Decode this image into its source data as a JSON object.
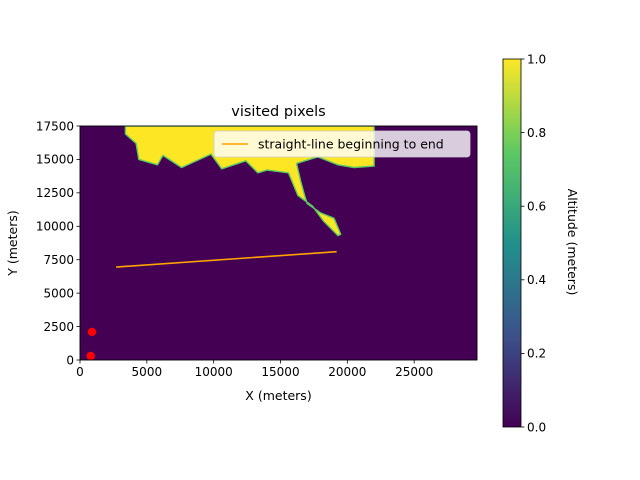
{
  "chart_data": {
    "type": "heatmap",
    "title": "visited pixels",
    "xlabel": "X (meters)",
    "ylabel": "Y (meters)",
    "xlim": [
      0,
      29700
    ],
    "ylim": [
      0,
      17500
    ],
    "x_ticks": [
      0,
      5000,
      10000,
      15000,
      20000,
      25000
    ],
    "y_ticks": [
      0,
      2500,
      5000,
      7500,
      10000,
      12500,
      15000,
      17500
    ],
    "grid": false,
    "background_value": 0.0,
    "visited_value": 1.0,
    "visited_region": [
      [
        3400,
        17500
      ],
      [
        18500,
        17500
      ],
      [
        22000,
        17500
      ],
      [
        22000,
        14500
      ],
      [
        20500,
        14400
      ],
      [
        19300,
        14600
      ],
      [
        17800,
        15200
      ],
      [
        16200,
        14700
      ],
      [
        16500,
        13400
      ],
      [
        16800,
        12300
      ],
      [
        17000,
        11700
      ],
      [
        18000,
        11000
      ],
      [
        19000,
        10600
      ],
      [
        19500,
        9400
      ],
      [
        19300,
        9300
      ],
      [
        18200,
        10400
      ],
      [
        17400,
        11500
      ],
      [
        16300,
        12300
      ],
      [
        15600,
        14000
      ],
      [
        14000,
        14200
      ],
      [
        13300,
        14000
      ],
      [
        12400,
        14900
      ],
      [
        10600,
        14300
      ],
      [
        9800,
        15400
      ],
      [
        7600,
        14400
      ],
      [
        6200,
        15300
      ],
      [
        5800,
        14600
      ],
      [
        4400,
        15000
      ],
      [
        4200,
        16200
      ],
      [
        3400,
        16900
      ]
    ],
    "series": [
      {
        "name": "straight-line beginning to end",
        "type": "line",
        "color": "#ffa500",
        "x": [
          2700,
          19200
        ],
        "y": [
          6950,
          8100
        ]
      },
      {
        "type": "scatter",
        "color": "#ff0000",
        "x": [
          800,
          900
        ],
        "y": [
          300,
          2100
        ]
      }
    ],
    "legend": {
      "location": "upper right"
    },
    "colorbar": {
      "label": "Altitude (meters)",
      "range": [
        0.0,
        1.0
      ],
      "ticks": [
        "0.0",
        "0.2",
        "0.4",
        "0.6",
        "0.8",
        "1.0"
      ],
      "colormap": [
        "#440154",
        "#3b528b",
        "#21918c",
        "#5ec962",
        "#fde725"
      ]
    }
  }
}
